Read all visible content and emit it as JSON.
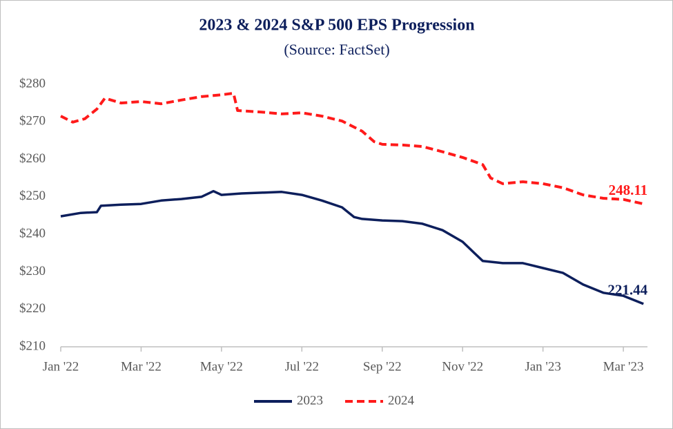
{
  "chart_data": {
    "type": "line",
    "title": "2023 & 2024 S&P 500 EPS Progression",
    "subtitle": "(Source: FactSet)",
    "xlim": [
      0,
      14.6
    ],
    "xticks": [
      {
        "value": 0,
        "label": "Jan '22"
      },
      {
        "value": 2,
        "label": "Mar '22"
      },
      {
        "value": 4,
        "label": "May '22"
      },
      {
        "value": 6,
        "label": "Jul '22"
      },
      {
        "value": 8,
        "label": "Sep '22"
      },
      {
        "value": 10,
        "label": "Nov '22"
      },
      {
        "value": 12,
        "label": "Jan '23"
      },
      {
        "value": 14,
        "label": "Mar '23"
      }
    ],
    "ylim": [
      210,
      280
    ],
    "yticks": [
      {
        "value": 210,
        "label": "$210"
      },
      {
        "value": 220,
        "label": "$220"
      },
      {
        "value": 230,
        "label": "$230"
      },
      {
        "value": 240,
        "label": "$240"
      },
      {
        "value": 250,
        "label": "$250"
      },
      {
        "value": 260,
        "label": "$260"
      },
      {
        "value": 270,
        "label": "$270"
      },
      {
        "value": 280,
        "label": "$280"
      }
    ],
    "grid": false,
    "legend": "bottom",
    "series": [
      {
        "name": "2023",
        "color": "#0d1f5c",
        "dash": false,
        "x": [
          0,
          0.5,
          0.9,
          1.0,
          1.5,
          2,
          2.5,
          3,
          3.5,
          3.8,
          4,
          4.5,
          5,
          5.5,
          6,
          6.5,
          7,
          7.3,
          7.5,
          8,
          8.5,
          9,
          9.5,
          10,
          10.3,
          10.5,
          11,
          11.5,
          12,
          12.5,
          13,
          13.5,
          14,
          14.5
        ],
        "values": [
          244.8,
          245.7,
          245.9,
          247.6,
          247.9,
          248.1,
          249.0,
          249.4,
          250.0,
          251.5,
          250.5,
          250.9,
          251.1,
          251.3,
          250.5,
          249.0,
          247.2,
          244.6,
          244.1,
          243.7,
          243.5,
          242.8,
          241.1,
          238.0,
          234.9,
          232.9,
          232.3,
          232.3,
          231.0,
          229.7,
          226.6,
          224.4,
          223.6,
          221.44
        ],
        "value_labels": [
          null,
          null,
          null,
          null,
          null,
          null,
          null,
          null,
          null,
          null,
          null,
          null,
          null,
          null,
          null,
          null,
          null,
          null,
          null,
          null,
          null,
          null,
          null,
          null,
          null,
          null,
          null,
          null,
          null,
          null,
          null,
          null,
          null,
          "221.44"
        ]
      },
      {
        "name": "2024",
        "color": "#ff1a1a",
        "dash": true,
        "x": [
          0,
          0.3,
          0.6,
          0.9,
          1.1,
          1.5,
          2,
          2.5,
          3,
          3.5,
          4,
          4.3,
          4.4,
          5,
          5.5,
          6,
          6.5,
          7,
          7.5,
          7.8,
          8,
          8.5,
          9,
          9.5,
          10,
          10.5,
          10.7,
          11,
          11.5,
          12,
          12.5,
          13,
          13.5,
          14,
          14.5
        ],
        "values": [
          271.5,
          269.9,
          270.8,
          273.4,
          276.3,
          275.0,
          275.4,
          274.8,
          275.8,
          276.7,
          277.2,
          277.6,
          273.0,
          272.6,
          272.1,
          272.4,
          271.5,
          270.2,
          267.5,
          264.7,
          264.0,
          263.8,
          263.4,
          262.0,
          260.5,
          258.6,
          255.0,
          253.5,
          254.0,
          253.5,
          252.4,
          250.5,
          249.6,
          249.3,
          248.11
        ],
        "value_labels": [
          null,
          null,
          null,
          null,
          null,
          null,
          null,
          null,
          null,
          null,
          null,
          null,
          null,
          null,
          null,
          null,
          null,
          null,
          null,
          null,
          null,
          null,
          null,
          null,
          null,
          null,
          null,
          null,
          null,
          null,
          null,
          null,
          null,
          null,
          "248.11"
        ]
      }
    ]
  }
}
